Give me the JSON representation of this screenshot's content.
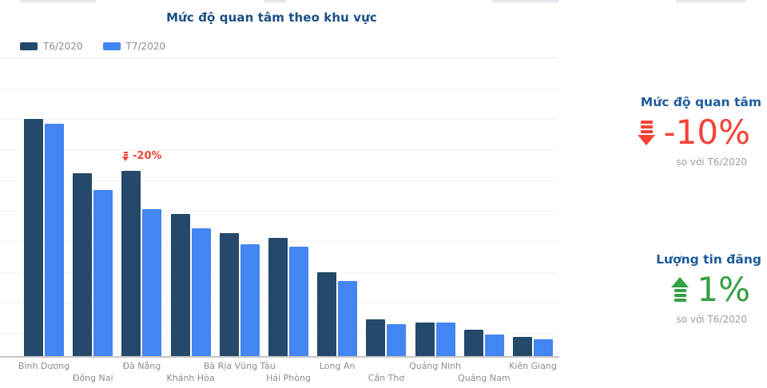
{
  "chart_data": {
    "type": "bar",
    "title": "Mức độ quan tâm theo khu vực",
    "categories": [
      "Bình Dương",
      "Đồng Nai",
      "Đà Nẵng",
      "Khánh Hòa",
      "Bà Rịa Vũng Tàu",
      "Hải Phòng",
      "Long An",
      "Cần Thơ",
      "Quảng Ninh",
      "Quảng Nam",
      "Kiên Giang"
    ],
    "series": [
      {
        "name": "T6/2020",
        "color": "#24496a",
        "values": [
          100,
          77,
          78,
          60,
          52,
          50,
          35.5,
          15.5,
          14,
          11,
          8
        ]
      },
      {
        "name": "T7/2020",
        "color": "#4285f3",
        "values": [
          98,
          70,
          62,
          54,
          47,
          46,
          31.5,
          13.5,
          14,
          9,
          7
        ]
      }
    ],
    "annotation": {
      "text": "-20%",
      "icon": "down-arrow-icon",
      "color": "#f44336",
      "category": "Đà Nẵng"
    },
    "xlabel": "",
    "ylabel": "",
    "ylim": [
      0,
      126
    ],
    "grid": "horizontal-light",
    "legend_position": "top-left"
  },
  "stats": {
    "interest": {
      "heading": "Mức độ quan tâm",
      "value": "-10%",
      "direction": "down",
      "color": "#f44336",
      "note": "so với T6/2020"
    },
    "listings": {
      "heading": "Lượng tin đăng",
      "value": "1%",
      "direction": "up",
      "color": "#34a040",
      "note": "so với T6/2020"
    }
  },
  "colors": {
    "title_blue": "#1b4e86",
    "heading_blue": "#1e5c9b",
    "axis_gray": "#c6c6c6",
    "label_gray": "#8c8c8c",
    "gridline": "#f3f3f3"
  }
}
